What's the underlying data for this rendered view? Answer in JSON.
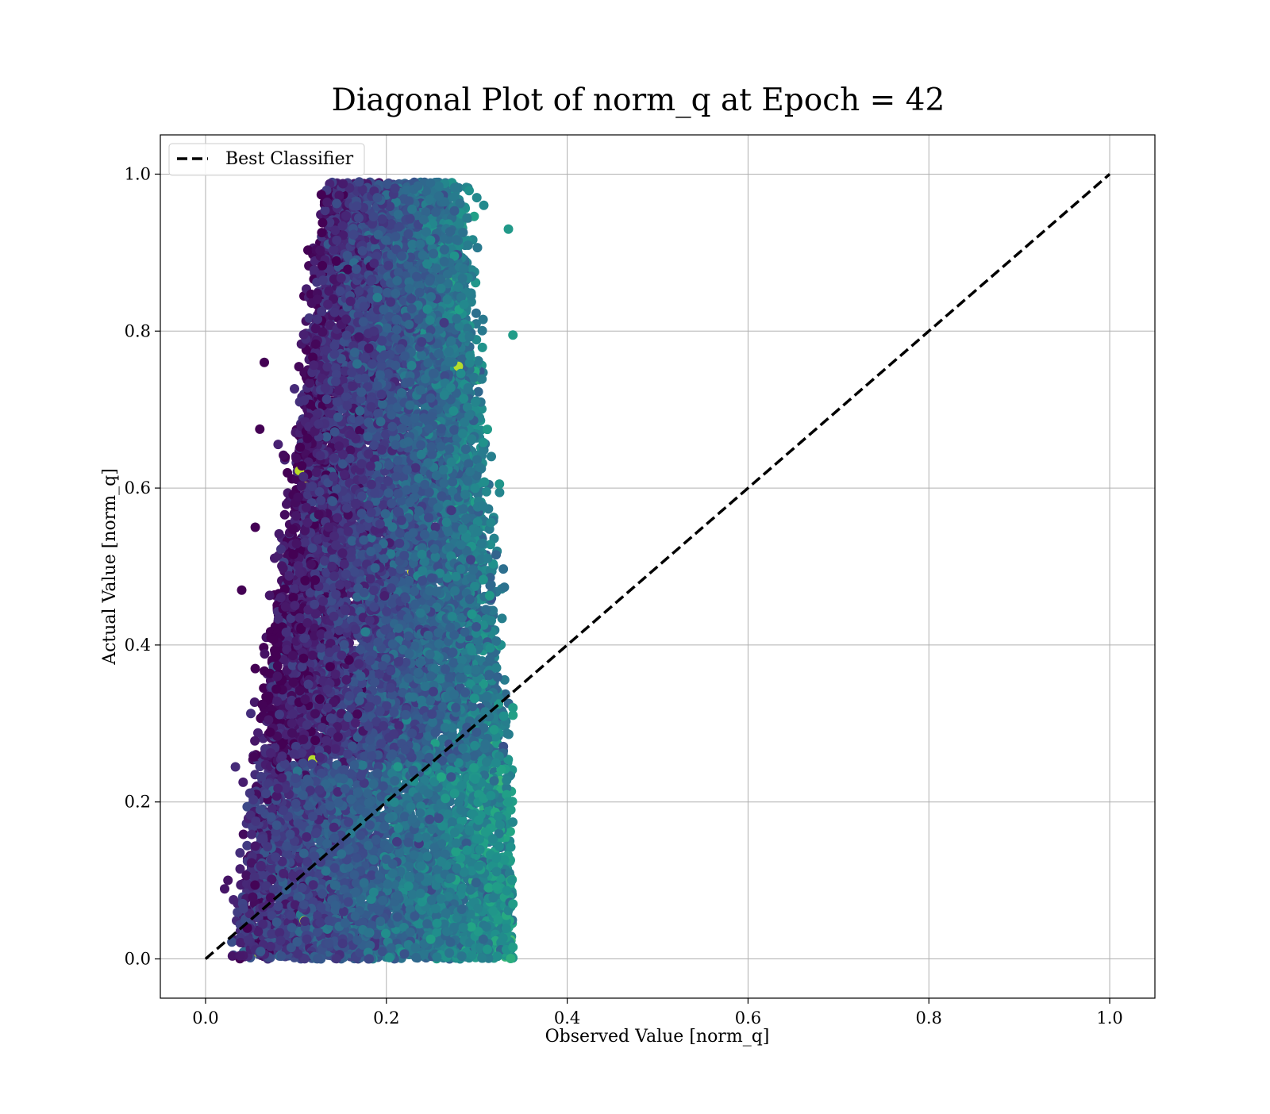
{
  "chart_data": {
    "type": "scatter",
    "title": "Diagonal Plot of norm_q at Epoch = 42",
    "xlabel": "Observed Value [norm_q]",
    "ylabel": "Actual Value [norm_q]",
    "xlim": [
      -0.05,
      1.05
    ],
    "ylim": [
      -0.05,
      1.05
    ],
    "xticks": [
      0.0,
      0.2,
      0.4,
      0.6,
      0.8,
      1.0
    ],
    "yticks": [
      0.0,
      0.2,
      0.4,
      0.6,
      0.8,
      1.0
    ],
    "xtick_labels": [
      "0.0",
      "0.2",
      "0.4",
      "0.6",
      "0.8",
      "1.0"
    ],
    "ytick_labels": [
      "0.0",
      "0.2",
      "0.4",
      "0.6",
      "0.8",
      "1.0"
    ],
    "grid": true,
    "legend": {
      "position": "upper-left",
      "entries": [
        {
          "label": "Best Classifier",
          "style": "dashed-line",
          "color": "#000000"
        }
      ]
    },
    "colormap": "viridis",
    "reference_line": {
      "name": "Best Classifier",
      "x": [
        0.0,
        1.0
      ],
      "y": [
        0.0,
        1.0
      ],
      "color": "#000000",
      "style": "dashed"
    },
    "scatter_envelope": {
      "x_min": 0.02,
      "x_max": 0.34,
      "y_min": 0.0,
      "y_max": 0.99,
      "point_count_estimate": 14000
    },
    "notable_points": [
      {
        "x": 0.19,
        "y": 0.97
      },
      {
        "x": 0.17,
        "y": 0.99
      },
      {
        "x": 0.235,
        "y": 0.985
      },
      {
        "x": 0.3,
        "y": 0.97
      },
      {
        "x": 0.335,
        "y": 0.93
      },
      {
        "x": 0.34,
        "y": 0.795
      },
      {
        "x": 0.065,
        "y": 0.76
      },
      {
        "x": 0.06,
        "y": 0.675
      },
      {
        "x": 0.055,
        "y": 0.55
      },
      {
        "x": 0.04,
        "y": 0.47
      },
      {
        "x": 0.055,
        "y": 0.37
      },
      {
        "x": 0.135,
        "y": 0.32
      },
      {
        "x": 0.34,
        "y": 0.32
      },
      {
        "x": 0.335,
        "y": 0.2
      },
      {
        "x": 0.25,
        "y": 0.075
      },
      {
        "x": 0.285,
        "y": 0.04
      },
      {
        "x": 0.34,
        "y": 0.07
      },
      {
        "x": 0.34,
        "y": 0.015
      },
      {
        "x": 0.21,
        "y": 0.655
      },
      {
        "x": 0.325,
        "y": 0.605
      }
    ]
  }
}
